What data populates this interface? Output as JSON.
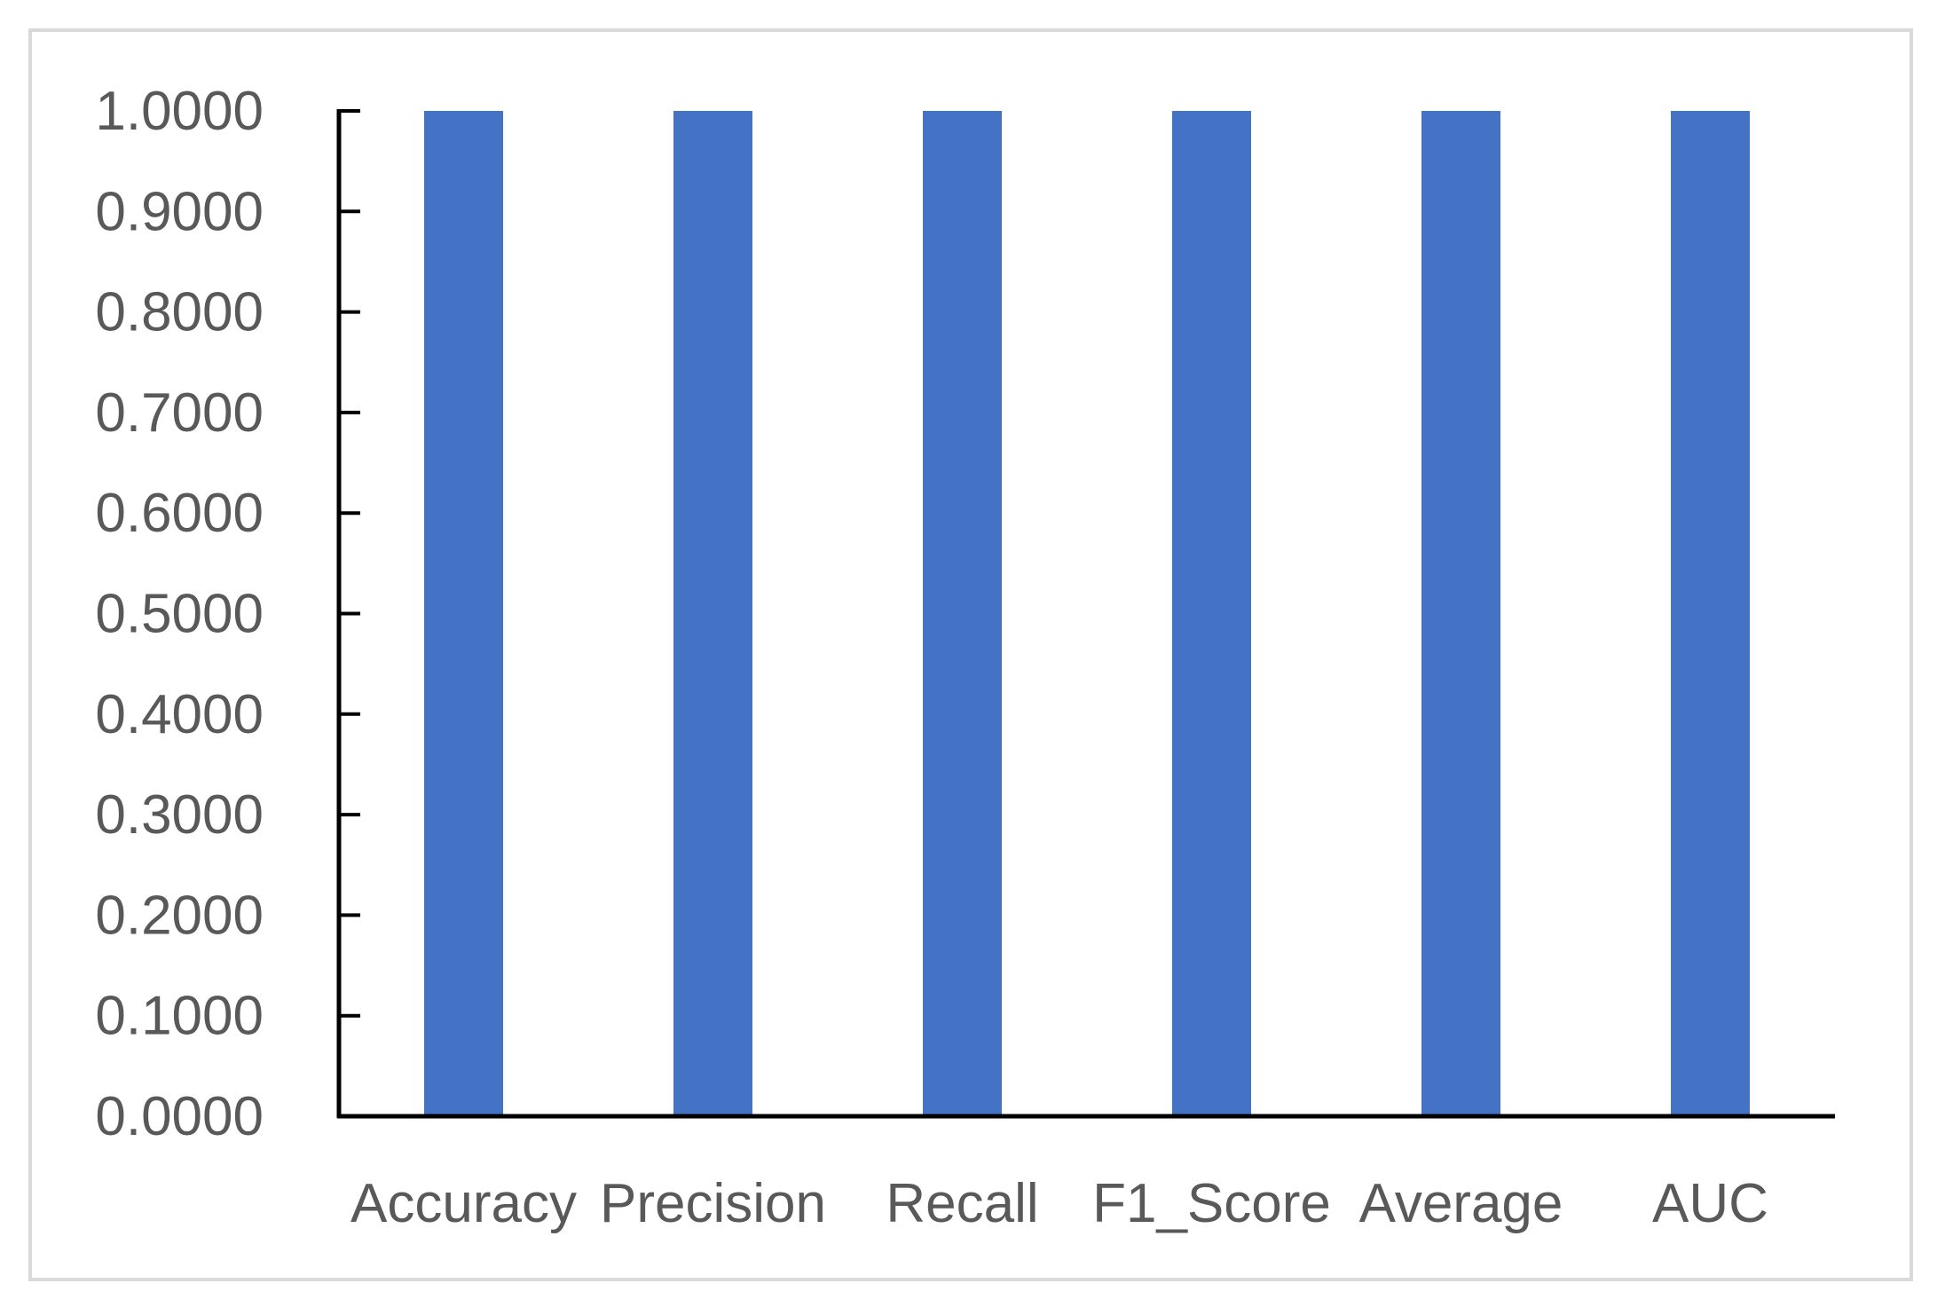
{
  "chart_data": {
    "type": "bar",
    "title": "",
    "xlabel": "",
    "ylabel": "",
    "categories": [
      "Accuracy",
      "Precision",
      "Recall",
      "F1_Score",
      "Average",
      "AUC"
    ],
    "values": [
      1.0,
      1.0,
      1.0,
      1.0,
      1.0,
      1.0
    ],
    "ylim": [
      0,
      1
    ],
    "yticks": [
      "0.0000",
      "0.1000",
      "0.2000",
      "0.3000",
      "0.4000",
      "0.5000",
      "0.6000",
      "0.7000",
      "0.8000",
      "0.9000",
      "1.0000"
    ],
    "grid": false,
    "legend": "none",
    "bar_color": "#4472c4",
    "axis_color": "#000000",
    "label_color": "#595959"
  }
}
